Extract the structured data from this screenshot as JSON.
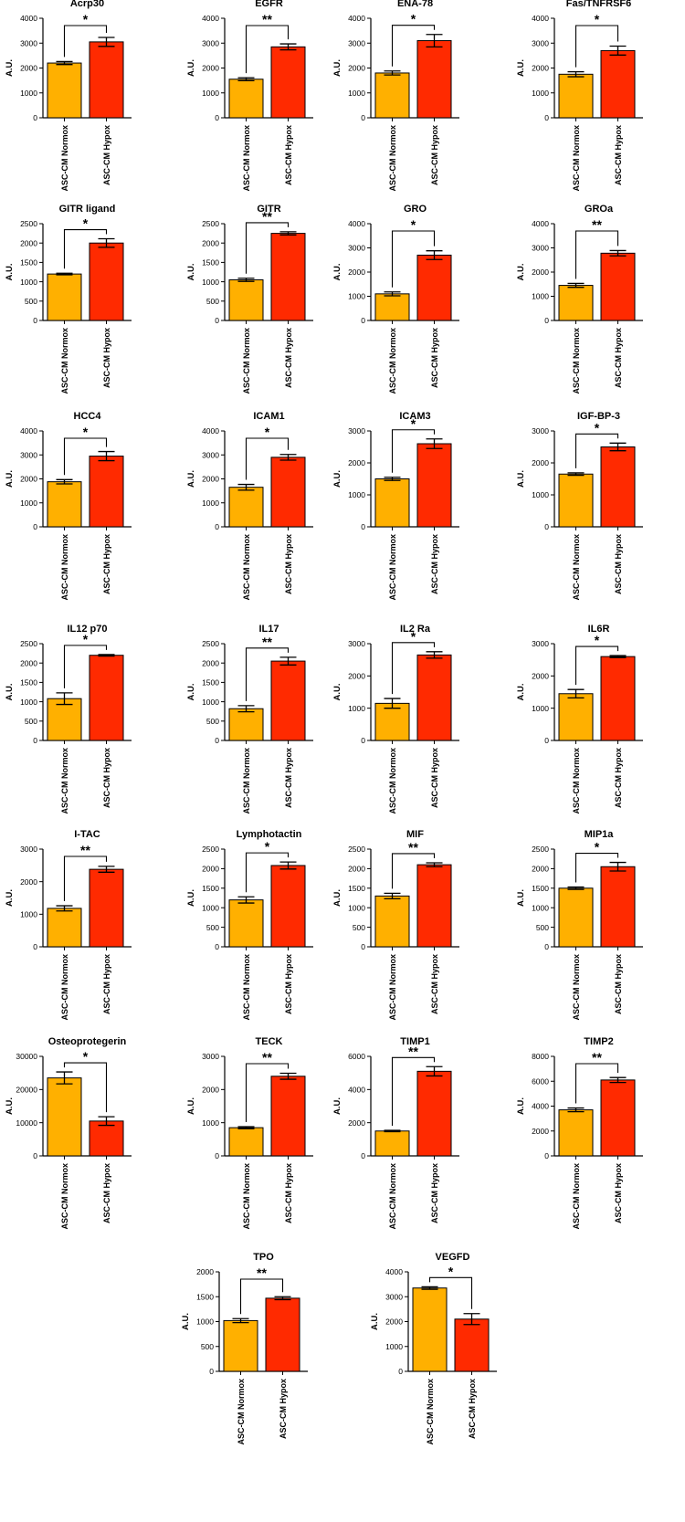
{
  "figure": {
    "ylabel": "A.U.",
    "categories": [
      "ASC-CM Normox",
      "ASC-CM  Hypox"
    ],
    "colors": {
      "normox": "#FFB000",
      "hypox": "#FF2A00",
      "axis": "#000000"
    }
  },
  "chart_data": [
    {
      "type": "bar",
      "title": "Acrp30",
      "categories": [
        "ASC-CM Normox",
        "ASC-CM  Hypox"
      ],
      "values": [
        2200,
        3050
      ],
      "errors": [
        60,
        180
      ],
      "significance": "*",
      "ylim": [
        0,
        4000
      ],
      "yticks": [
        0,
        1000,
        2000,
        3000,
        4000
      ],
      "ylabel": "A.U."
    },
    {
      "type": "bar",
      "title": "EGFR",
      "categories": [
        "ASC-CM Normox",
        "ASC-CM Hypox"
      ],
      "values": [
        1550,
        2850
      ],
      "errors": [
        60,
        120
      ],
      "significance": "**",
      "ylim": [
        0,
        4000
      ],
      "yticks": [
        0,
        1000,
        2000,
        3000,
        4000
      ],
      "ylabel": "A.U."
    },
    {
      "type": "bar",
      "title": "ENA-78",
      "categories": [
        "ASC-CM Normox",
        "ASC-CM Hypox"
      ],
      "values": [
        1800,
        3100
      ],
      "errors": [
        80,
        250
      ],
      "significance": "*",
      "ylim": [
        0,
        4000
      ],
      "yticks": [
        0,
        1000,
        2000,
        3000,
        4000
      ],
      "ylabel": "A.U."
    },
    {
      "type": "bar",
      "title": "Fas/TNFRSF6",
      "categories": [
        "ASC-CM Normox",
        "ASC-CM Hypox"
      ],
      "values": [
        1750,
        2700
      ],
      "errors": [
        100,
        180
      ],
      "significance": "*",
      "ylim": [
        0,
        4000
      ],
      "yticks": [
        0,
        1000,
        2000,
        3000,
        4000
      ],
      "ylabel": "A.U."
    },
    {
      "type": "bar",
      "title": "GITR ligand",
      "categories": [
        "ASC-CM Normox",
        "ASC-CM Hypox"
      ],
      "values": [
        1200,
        2000
      ],
      "errors": [
        20,
        110
      ],
      "significance": "*",
      "ylim": [
        0,
        2500
      ],
      "yticks": [
        0,
        500,
        1000,
        1500,
        2000,
        2500
      ],
      "ylabel": "A.U."
    },
    {
      "type": "bar",
      "title": "GITR",
      "categories": [
        "ASC-CM Normox",
        "ASC-CM Hypox"
      ],
      "values": [
        1050,
        2250
      ],
      "errors": [
        40,
        40
      ],
      "significance": "**",
      "ylim": [
        0,
        2500
      ],
      "yticks": [
        0,
        500,
        1000,
        1500,
        2000,
        2500
      ],
      "ylabel": "A.U."
    },
    {
      "type": "bar",
      "title": "GRO",
      "categories": [
        "ASC-CM Normox",
        "ASC-CM Hypox"
      ],
      "values": [
        1100,
        2700
      ],
      "errors": [
        80,
        180
      ],
      "significance": "*",
      "ylim": [
        0,
        4000
      ],
      "yticks": [
        0,
        1000,
        2000,
        3000,
        4000
      ],
      "ylabel": "A.U."
    },
    {
      "type": "bar",
      "title": "GROa",
      "categories": [
        "ASC-CM Normox",
        "ASC-CM Hypox"
      ],
      "values": [
        1450,
        2780
      ],
      "errors": [
        80,
        110
      ],
      "significance": "**",
      "ylim": [
        0,
        4000
      ],
      "yticks": [
        0,
        1000,
        2000,
        3000,
        4000
      ],
      "ylabel": "A.U."
    },
    {
      "type": "bar",
      "title": "HCC4",
      "categories": [
        "ASC-CM Normox",
        "ASC-CM Hypox"
      ],
      "values": [
        1880,
        2950
      ],
      "errors": [
        90,
        190
      ],
      "significance": "*",
      "ylim": [
        0,
        4000
      ],
      "yticks": [
        0,
        1000,
        2000,
        3000,
        4000
      ],
      "ylabel": "A.U."
    },
    {
      "type": "bar",
      "title": "ICAM1",
      "categories": [
        "ASC-CM Normox",
        "ASC-CM Hypox"
      ],
      "values": [
        1650,
        2900
      ],
      "errors": [
        120,
        120
      ],
      "significance": "*",
      "ylim": [
        0,
        4000
      ],
      "yticks": [
        0,
        1000,
        2000,
        3000,
        4000
      ],
      "ylabel": "A.U."
    },
    {
      "type": "bar",
      "title": "ICAM3",
      "categories": [
        "ASC-CM Normox",
        "ASC-CM Hypox"
      ],
      "values": [
        1500,
        2600
      ],
      "errors": [
        50,
        150
      ],
      "significance": "*",
      "ylim": [
        0,
        3000
      ],
      "yticks": [
        0,
        1000,
        2000,
        3000
      ],
      "ylabel": "A.U."
    },
    {
      "type": "bar",
      "title": "IGF-BP-3",
      "categories": [
        "ASC-CM Normox",
        "ASC-CM Hypox"
      ],
      "values": [
        1650,
        2500
      ],
      "errors": [
        40,
        120
      ],
      "significance": "*",
      "ylim": [
        0,
        3000
      ],
      "yticks": [
        0,
        1000,
        2000,
        3000
      ],
      "ylabel": "A.U."
    },
    {
      "type": "bar",
      "title": "IL12 p70",
      "categories": [
        "ASC-CM Normox",
        "ASC-CM Hypox"
      ],
      "values": [
        1080,
        2200
      ],
      "errors": [
        150,
        20
      ],
      "significance": "*",
      "ylim": [
        0,
        2500
      ],
      "yticks": [
        0,
        500,
        1000,
        1500,
        2000,
        2500
      ],
      "ylabel": "A.U."
    },
    {
      "type": "bar",
      "title": "IL17",
      "categories": [
        "ASC-CM Normox",
        "ASC-CM Hypox"
      ],
      "values": [
        820,
        2050
      ],
      "errors": [
        80,
        100
      ],
      "significance": "**",
      "ylim": [
        0,
        2500
      ],
      "yticks": [
        0,
        500,
        1000,
        1500,
        2000,
        2500
      ],
      "ylabel": "A.U."
    },
    {
      "type": "bar",
      "title": "IL2 Ra",
      "categories": [
        "ASC-CM Normox",
        "ASC-CM Hypox"
      ],
      "values": [
        1150,
        2650
      ],
      "errors": [
        150,
        100
      ],
      "significance": "*",
      "ylim": [
        0,
        3000
      ],
      "yticks": [
        0,
        1000,
        2000,
        3000
      ],
      "ylabel": "A.U."
    },
    {
      "type": "bar",
      "title": "IL6R",
      "categories": [
        "ASC-CM Normox",
        "ASC-CM Hypox"
      ],
      "values": [
        1450,
        2600
      ],
      "errors": [
        130,
        30
      ],
      "significance": "*",
      "ylim": [
        0,
        3000
      ],
      "yticks": [
        0,
        1000,
        2000,
        3000
      ],
      "ylabel": "A.U."
    },
    {
      "type": "bar",
      "title": "I-TAC",
      "categories": [
        "ASC-CM Normox",
        "ASC-CM Hypox"
      ],
      "values": [
        1180,
        2380
      ],
      "errors": [
        80,
        90
      ],
      "significance": "**",
      "ylim": [
        0,
        3000
      ],
      "yticks": [
        0,
        1000,
        2000,
        3000
      ],
      "ylabel": "A.U."
    },
    {
      "type": "bar",
      "title": "Lymphotactin",
      "categories": [
        "ASC-CM Normox",
        "ASC-CM Hypox"
      ],
      "values": [
        1200,
        2080
      ],
      "errors": [
        80,
        90
      ],
      "significance": "*",
      "ylim": [
        0,
        2500
      ],
      "yticks": [
        0,
        500,
        1000,
        1500,
        2000,
        2500
      ],
      "ylabel": "A.U."
    },
    {
      "type": "bar",
      "title": "MIF",
      "categories": [
        "ASC-CM Normox",
        "ASC-CM Hypox"
      ],
      "values": [
        1300,
        2100
      ],
      "errors": [
        70,
        50
      ],
      "significance": "**",
      "ylim": [
        0,
        2500
      ],
      "yticks": [
        0,
        500,
        1000,
        1500,
        2000,
        2500
      ],
      "ylabel": "A.U."
    },
    {
      "type": "bar",
      "title": "MIP1a",
      "categories": [
        "ASC-CM Normox",
        "ASC-CM Hypox"
      ],
      "values": [
        1500,
        2050
      ],
      "errors": [
        30,
        110
      ],
      "significance": "*",
      "ylim": [
        0,
        2500
      ],
      "yticks": [
        0,
        500,
        1000,
        1500,
        2000,
        2500
      ],
      "ylabel": "A.U."
    },
    {
      "type": "bar",
      "title": "Osteoprotegerin",
      "categories": [
        "ASC-CM Normox",
        "ASC-CM Hypox"
      ],
      "values": [
        23500,
        10500
      ],
      "errors": [
        1800,
        1300
      ],
      "significance": "*",
      "ylim": [
        0,
        30000
      ],
      "yticks": [
        0,
        10000,
        20000,
        30000
      ],
      "ylabel": "A.U."
    },
    {
      "type": "bar",
      "title": "TECK",
      "categories": [
        "ASC-CM Normox",
        "ASC-CM Hypox"
      ],
      "values": [
        850,
        2400
      ],
      "errors": [
        30,
        90
      ],
      "significance": "**",
      "ylim": [
        0,
        3000
      ],
      "yticks": [
        0,
        1000,
        2000,
        3000
      ],
      "ylabel": "A.U."
    },
    {
      "type": "bar",
      "title": "TIMP1",
      "categories": [
        "ASC-CM Normox",
        "ASC-CM Hypox"
      ],
      "values": [
        1500,
        5100
      ],
      "errors": [
        40,
        280
      ],
      "significance": "**",
      "ylim": [
        0,
        6000
      ],
      "yticks": [
        0,
        2000,
        4000,
        6000
      ],
      "ylabel": "A.U."
    },
    {
      "type": "bar",
      "title": "TIMP2",
      "categories": [
        "ASC-CM Normox",
        "ASC-CM Hypox"
      ],
      "values": [
        3700,
        6100
      ],
      "errors": [
        150,
        200
      ],
      "significance": "**",
      "ylim": [
        0,
        8000
      ],
      "yticks": [
        0,
        2000,
        4000,
        6000,
        8000
      ],
      "ylabel": "A.U."
    },
    {
      "type": "bar",
      "title": "TPO",
      "categories": [
        "ASC-CM Normox",
        "ASC-CM Hypox"
      ],
      "values": [
        1020,
        1470
      ],
      "errors": [
        40,
        30
      ],
      "significance": "**",
      "ylim": [
        0,
        2000
      ],
      "yticks": [
        0,
        500,
        1000,
        1500,
        2000
      ],
      "ylabel": "A.U."
    },
    {
      "type": "bar",
      "title": "VEGFD",
      "categories": [
        "ASC-CM Normox",
        "ASC-CM Hypox"
      ],
      "values": [
        3350,
        2100
      ],
      "errors": [
        50,
        220
      ],
      "significance": "*",
      "ylim": [
        0,
        4000
      ],
      "yticks": [
        0,
        1000,
        2000,
        3000,
        4000
      ],
      "ylabel": "A.U."
    }
  ]
}
